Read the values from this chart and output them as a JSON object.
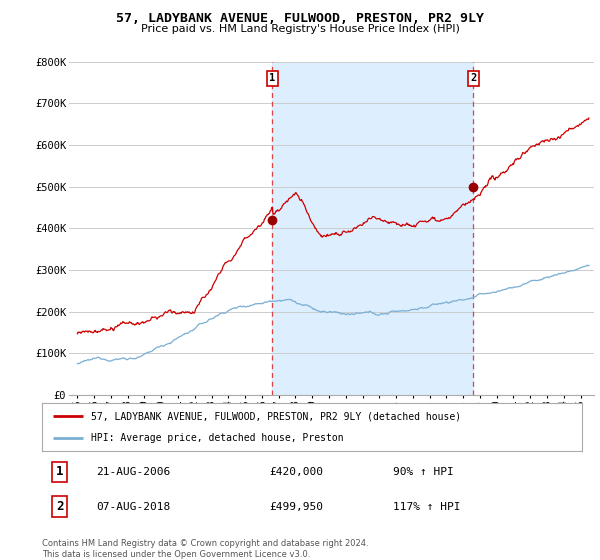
{
  "title": "57, LADYBANK AVENUE, FULWOOD, PRESTON, PR2 9LY",
  "subtitle": "Price paid vs. HM Land Registry's House Price Index (HPI)",
  "ylim": [
    0,
    800000
  ],
  "yticks": [
    0,
    100000,
    200000,
    300000,
    400000,
    500000,
    600000,
    700000,
    800000
  ],
  "ytick_labels": [
    "£0",
    "£100K",
    "£200K",
    "£300K",
    "£400K",
    "£500K",
    "£600K",
    "£700K",
    "£800K"
  ],
  "line1_color": "#cc0000",
  "line2_color": "#7bafd4",
  "marker1_color": "#990000",
  "marker2_color": "#990000",
  "shade_color": "#ddeeff",
  "annotation1": {
    "label": "1",
    "date": "21-AUG-2006",
    "price": 420000,
    "price_str": "£420,000",
    "hpi": "90% ↑ HPI"
  },
  "annotation2": {
    "label": "2",
    "date": "07-AUG-2018",
    "price": 499950,
    "price_str": "£499,950",
    "hpi": "117% ↑ HPI"
  },
  "legend_line1": "57, LADYBANK AVENUE, FULWOOD, PRESTON, PR2 9LY (detached house)",
  "legend_line2": "HPI: Average price, detached house, Preston",
  "footer": "Contains HM Land Registry data © Crown copyright and database right 2024.\nThis data is licensed under the Open Government Licence v3.0.",
  "background_color": "#ffffff",
  "grid_color": "#cccccc",
  "dashed_line_color": "#dd4444",
  "box_color": "#cc0000",
  "year1": 2006.63,
  "year2": 2018.6,
  "xlim_left": 1994.5,
  "xlim_right": 2025.8
}
